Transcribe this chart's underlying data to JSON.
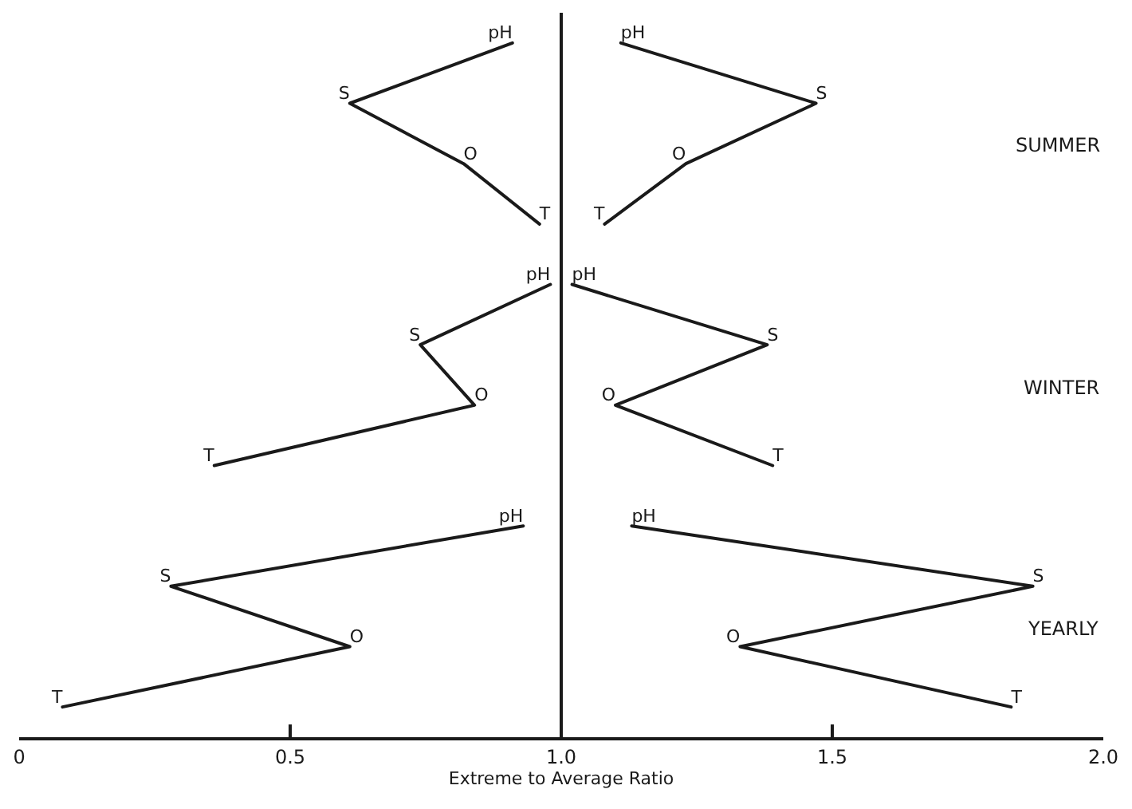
{
  "chart_data": {
    "type": "line",
    "orientation": "horizontal",
    "xlabel": "Extreme to Average Ratio",
    "categories": [
      null,
      null,
      null,
      null,
      null,
      null,
      null,
      null,
      null,
      null,
      null,
      null
    ],
    "xlim": [
      0,
      2.0
    ],
    "xticks": [
      0,
      0.5,
      {
        "value": 1.0,
        "label": "1.0"
      },
      1.5,
      {
        "value": 2.0,
        "label": "2.0"
      }
    ],
    "tick_labels": "x",
    "grid": false,
    "marker": "none",
    "line_style": "solid",
    "ref_lines": [
      {
        "axis": "x",
        "value": 1.0,
        "color": "#1a1a1a"
      }
    ],
    "annotations": [
      "SUMMER",
      "WINTER",
      "YEARLY"
    ],
    "series": [
      {
        "color": "#1a1a1a",
        "values": [
          0.91,
          0.61,
          0.82,
          0.96,
          null,
          null,
          null,
          null,
          null,
          null,
          null,
          null
        ],
        "value_labels": [
          "pH",
          "S",
          "O",
          "T",
          null,
          null,
          null,
          null,
          null,
          null,
          null,
          null
        ]
      },
      {
        "color": "#1a1a1a",
        "values": [
          1.11,
          1.47,
          1.23,
          1.08,
          null,
          null,
          null,
          null,
          null,
          null,
          null,
          null
        ],
        "value_labels": [
          "pH",
          "S",
          "O",
          "T",
          null,
          null,
          null,
          null,
          null,
          null,
          null,
          null
        ]
      },
      {
        "color": "#1a1a1a",
        "values": [
          null,
          null,
          null,
          null,
          0.98,
          0.74,
          0.84,
          0.36,
          null,
          null,
          null,
          null
        ],
        "value_labels": [
          null,
          null,
          null,
          null,
          "pH",
          "S",
          "O",
          "T",
          null,
          null,
          null,
          null
        ]
      },
      {
        "color": "#1a1a1a",
        "values": [
          null,
          null,
          null,
          null,
          1.02,
          1.38,
          1.1,
          1.39,
          null,
          null,
          null,
          null
        ],
        "value_labels": [
          null,
          null,
          null,
          null,
          "pH",
          "S",
          "O",
          "T",
          null,
          null,
          null,
          null
        ]
      },
      {
        "color": "#1a1a1a",
        "values": [
          null,
          null,
          null,
          null,
          null,
          null,
          null,
          null,
          0.93,
          0.28,
          0.61,
          0.08
        ],
        "value_labels": [
          null,
          null,
          null,
          null,
          null,
          null,
          null,
          null,
          "pH",
          "S",
          "O",
          "T"
        ]
      },
      {
        "color": "#1a1a1a",
        "values": [
          null,
          null,
          null,
          null,
          null,
          null,
          null,
          null,
          1.13,
          1.87,
          1.33,
          1.83
        ],
        "value_labels": [
          null,
          null,
          null,
          null,
          null,
          null,
          null,
          null,
          "pH",
          "S",
          "O",
          "T"
        ]
      }
    ]
  }
}
